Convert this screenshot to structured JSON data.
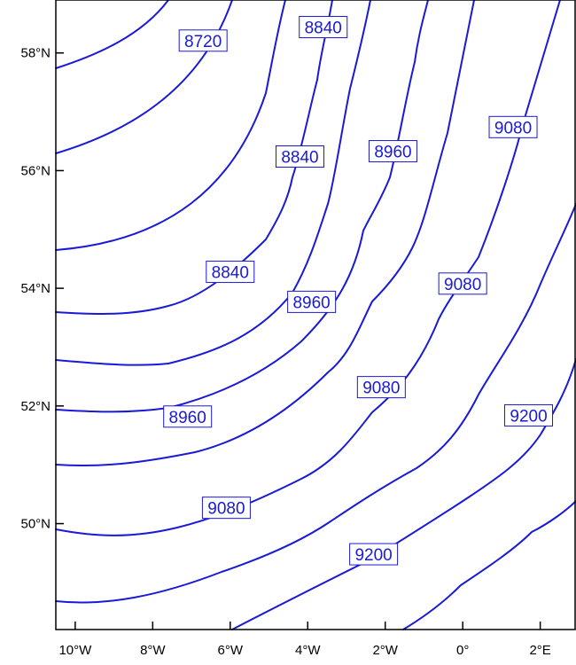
{
  "map": {
    "type": "contour",
    "xaxis": {
      "ticks": [
        {
          "value": -10,
          "label": "10°W"
        },
        {
          "value": -8,
          "label": "8°W"
        },
        {
          "value": -6,
          "label": "6°W"
        },
        {
          "value": -4,
          "label": "4°W"
        },
        {
          "value": -2,
          "label": "2°W"
        },
        {
          "value": 0,
          "label": "0°"
        },
        {
          "value": 2,
          "label": "2°E"
        }
      ],
      "range": [
        -10.5,
        2.9
      ]
    },
    "yaxis": {
      "ticks": [
        {
          "value": 58,
          "label": "58°N"
        },
        {
          "value": 56,
          "label": "56°N"
        },
        {
          "value": 54,
          "label": "54°N"
        },
        {
          "value": 52,
          "label": "52°N"
        },
        {
          "value": 50,
          "label": "50°N"
        }
      ],
      "range": [
        48.2,
        58.9
      ]
    },
    "line_color": "#1a1ad6",
    "labels": [
      {
        "text": "8720",
        "lon": -6.7,
        "lat": 58.21
      },
      {
        "text": "8840",
        "lon": -3.6,
        "lat": 58.44
      },
      {
        "text": "8840",
        "lon": -4.2,
        "lat": 56.24
      },
      {
        "text": "8840",
        "lon": -6.0,
        "lat": 54.28
      },
      {
        "text": "8960",
        "lon": -1.8,
        "lat": 56.33
      },
      {
        "text": "8960",
        "lon": -3.9,
        "lat": 53.77
      },
      {
        "text": "8960",
        "lon": -7.1,
        "lat": 51.82
      },
      {
        "text": "9080",
        "lon": 1.3,
        "lat": 56.74
      },
      {
        "text": "9080",
        "lon": 0.0,
        "lat": 54.08
      },
      {
        "text": "9080",
        "lon": -2.1,
        "lat": 52.32
      },
      {
        "text": "9080",
        "lon": -6.1,
        "lat": 50.27
      },
      {
        "text": "9200",
        "lon": 1.7,
        "lat": 51.84
      },
      {
        "text": "9200",
        "lon": -2.3,
        "lat": 49.48
      }
    ]
  }
}
